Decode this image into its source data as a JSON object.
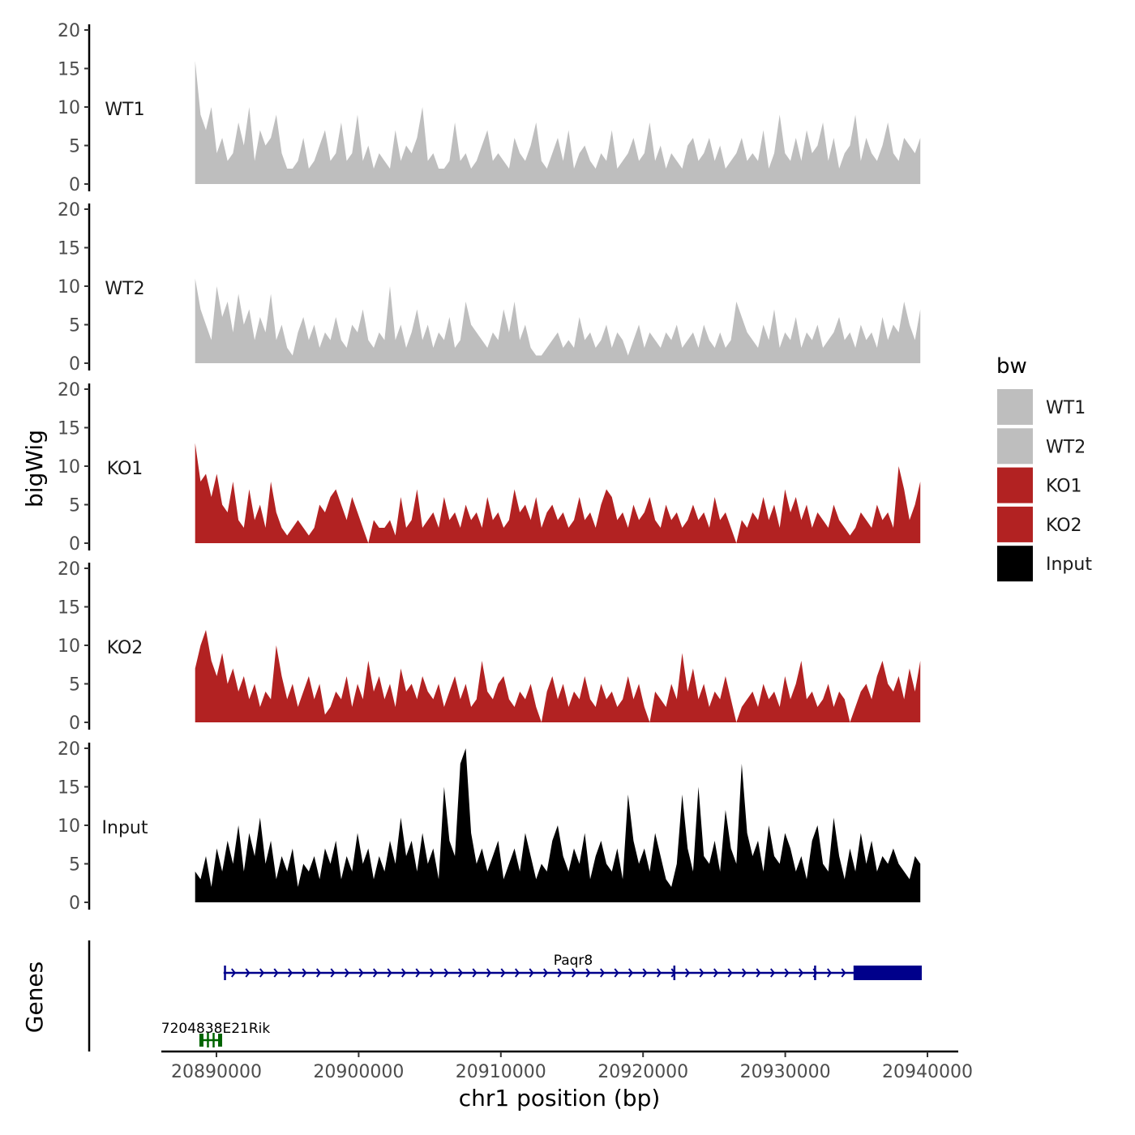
{
  "chart_data": {
    "type": "area",
    "title": "",
    "xlabel": "chr1 position (bp)",
    "ylabel": "bigWig",
    "genes_label": "Genes",
    "xlim": [
      20886000,
      20942000
    ],
    "data_range": [
      20888500,
      20939500
    ],
    "x_ticks": [
      "20890000",
      "20900000",
      "20910000",
      "20920000",
      "20930000",
      "20940000"
    ],
    "x_tick_values": [
      20890000,
      20900000,
      20910000,
      20920000,
      20930000,
      20940000
    ],
    "ylim": [
      0,
      20
    ],
    "y_ticks": [
      "0",
      "5",
      "10",
      "15",
      "20"
    ],
    "y_tick_values": [
      0,
      5,
      10,
      15,
      20
    ],
    "legend": {
      "title": "bw",
      "entries": [
        {
          "label": "WT1",
          "color": "#bebebe"
        },
        {
          "label": "WT2",
          "color": "#bebebe"
        },
        {
          "label": "KO1",
          "color": "#b22222"
        },
        {
          "label": "KO2",
          "color": "#b22222"
        },
        {
          "label": "Input",
          "color": "#000000"
        }
      ]
    },
    "series": [
      {
        "name": "WT1",
        "color": "#bebebe",
        "values": [
          16,
          9,
          7,
          10,
          4,
          6,
          3,
          4,
          8,
          5,
          10,
          3,
          7,
          5,
          6,
          9,
          4,
          2,
          2,
          3,
          6,
          2,
          3,
          5,
          7,
          3,
          4,
          8,
          3,
          4,
          9,
          3,
          5,
          2,
          4,
          3,
          2,
          7,
          3,
          5,
          4,
          6,
          10,
          3,
          4,
          2,
          2,
          3,
          8,
          3,
          4,
          2,
          3,
          5,
          7,
          3,
          4,
          3,
          2,
          6,
          4,
          3,
          5,
          8,
          3,
          2,
          4,
          6,
          3,
          7,
          2,
          4,
          5,
          3,
          2,
          4,
          3,
          7,
          2,
          3,
          4,
          6,
          3,
          4,
          8,
          3,
          5,
          2,
          4,
          3,
          2,
          5,
          6,
          3,
          4,
          6,
          3,
          5,
          2,
          3,
          4,
          6,
          3,
          4,
          3,
          7,
          2,
          4,
          9,
          4,
          3,
          6,
          3,
          7,
          4,
          5,
          8,
          3,
          6,
          2,
          4,
          5,
          9,
          3,
          6,
          4,
          3,
          5,
          8,
          4,
          3,
          6,
          5,
          4,
          6
        ]
      },
      {
        "name": "WT2",
        "color": "#bebebe",
        "values": [
          11,
          7,
          5,
          3,
          10,
          6,
          8,
          4,
          9,
          5,
          7,
          3,
          6,
          4,
          9,
          3,
          5,
          2,
          1,
          4,
          6,
          3,
          5,
          2,
          4,
          3,
          6,
          3,
          2,
          5,
          4,
          7,
          3,
          2,
          4,
          3,
          10,
          3,
          5,
          2,
          4,
          7,
          3,
          5,
          2,
          4,
          3,
          6,
          2,
          3,
          8,
          5,
          4,
          3,
          2,
          4,
          3,
          7,
          4,
          8,
          3,
          5,
          2,
          1,
          1,
          2,
          3,
          4,
          2,
          3,
          2,
          6,
          3,
          4,
          2,
          3,
          5,
          2,
          4,
          3,
          1,
          3,
          5,
          2,
          4,
          3,
          2,
          4,
          3,
          5,
          2,
          3,
          4,
          2,
          5,
          3,
          2,
          4,
          2,
          3,
          8,
          6,
          4,
          3,
          2,
          5,
          3,
          7,
          2,
          4,
          3,
          6,
          2,
          4,
          3,
          5,
          2,
          3,
          4,
          6,
          3,
          4,
          2,
          5,
          3,
          4,
          2,
          6,
          3,
          5,
          4,
          8,
          5,
          3,
          7
        ]
      },
      {
        "name": "KO1",
        "color": "#b22222",
        "values": [
          13,
          8,
          9,
          6,
          9,
          5,
          4,
          8,
          3,
          2,
          7,
          3,
          5,
          2,
          8,
          4,
          2,
          1,
          2,
          3,
          2,
          1,
          2,
          5,
          4,
          6,
          7,
          5,
          3,
          6,
          4,
          2,
          0,
          3,
          2,
          2,
          3,
          1,
          6,
          2,
          3,
          7,
          2,
          3,
          4,
          2,
          6,
          3,
          4,
          2,
          5,
          3,
          4,
          2,
          6,
          3,
          4,
          2,
          3,
          7,
          4,
          5,
          3,
          6,
          2,
          4,
          5,
          3,
          4,
          2,
          3,
          6,
          3,
          4,
          2,
          5,
          7,
          6,
          3,
          4,
          2,
          5,
          3,
          4,
          6,
          3,
          2,
          5,
          3,
          4,
          2,
          3,
          5,
          3,
          4,
          2,
          6,
          3,
          4,
          2,
          0,
          3,
          2,
          4,
          3,
          6,
          3,
          5,
          2,
          7,
          4,
          6,
          3,
          5,
          2,
          4,
          3,
          2,
          5,
          3,
          2,
          1,
          2,
          4,
          3,
          2,
          5,
          3,
          4,
          2,
          10,
          7,
          3,
          5,
          8
        ]
      },
      {
        "name": "KO2",
        "color": "#b22222",
        "values": [
          7,
          10,
          12,
          8,
          6,
          9,
          5,
          7,
          4,
          6,
          3,
          5,
          2,
          4,
          3,
          10,
          6,
          3,
          5,
          2,
          4,
          6,
          3,
          5,
          1,
          2,
          4,
          3,
          6,
          2,
          5,
          3,
          8,
          4,
          6,
          3,
          5,
          2,
          7,
          4,
          5,
          3,
          6,
          4,
          3,
          5,
          2,
          4,
          6,
          3,
          5,
          2,
          3,
          8,
          4,
          3,
          5,
          6,
          3,
          2,
          4,
          3,
          5,
          2,
          0,
          4,
          6,
          3,
          5,
          2,
          4,
          3,
          6,
          3,
          2,
          5,
          3,
          4,
          2,
          3,
          6,
          3,
          5,
          2,
          0,
          4,
          3,
          2,
          5,
          3,
          9,
          4,
          7,
          3,
          5,
          2,
          4,
          3,
          6,
          3,
          0,
          2,
          3,
          4,
          2,
          5,
          3,
          4,
          2,
          6,
          3,
          5,
          8,
          3,
          4,
          2,
          3,
          5,
          2,
          4,
          3,
          0,
          2,
          4,
          5,
          3,
          6,
          8,
          5,
          4,
          6,
          3,
          7,
          4,
          8
        ]
      },
      {
        "name": "Input",
        "color": "#000000",
        "values": [
          4,
          3,
          6,
          2,
          7,
          4,
          8,
          5,
          10,
          4,
          9,
          6,
          11,
          5,
          8,
          3,
          6,
          4,
          7,
          2,
          5,
          4,
          6,
          3,
          7,
          5,
          8,
          3,
          6,
          4,
          9,
          5,
          7,
          3,
          6,
          4,
          8,
          5,
          11,
          6,
          8,
          4,
          9,
          5,
          7,
          3,
          15,
          8,
          6,
          18,
          20,
          9,
          5,
          7,
          4,
          6,
          8,
          3,
          5,
          7,
          4,
          9,
          6,
          3,
          5,
          4,
          8,
          10,
          6,
          4,
          7,
          5,
          9,
          3,
          6,
          8,
          5,
          4,
          7,
          3,
          14,
          8,
          5,
          7,
          4,
          9,
          6,
          3,
          2,
          5,
          14,
          7,
          4,
          15,
          6,
          5,
          8,
          4,
          12,
          7,
          5,
          18,
          9,
          6,
          8,
          4,
          10,
          6,
          5,
          9,
          7,
          4,
          6,
          3,
          8,
          10,
          5,
          4,
          11,
          6,
          3,
          7,
          4,
          9,
          5,
          8,
          4,
          6,
          5,
          7,
          5,
          4,
          3,
          6,
          5
        ]
      }
    ],
    "genes": [
      {
        "name": "Paqr8",
        "start": 20890500,
        "end": 20939600,
        "strand": "+",
        "color": "#00008b",
        "cds_start": 20934800,
        "cds_end": 20939600,
        "intron_marks": [
          20890600,
          20922200,
          20932100
        ]
      },
      {
        "name": "7204838E21Rik",
        "start": 20888800,
        "end": 20890400,
        "strand": "-",
        "color": "#006400",
        "cds_start": 20888800,
        "cds_end": 20890400,
        "intron_marks": [
          20889400,
          20889800
        ]
      }
    ]
  }
}
